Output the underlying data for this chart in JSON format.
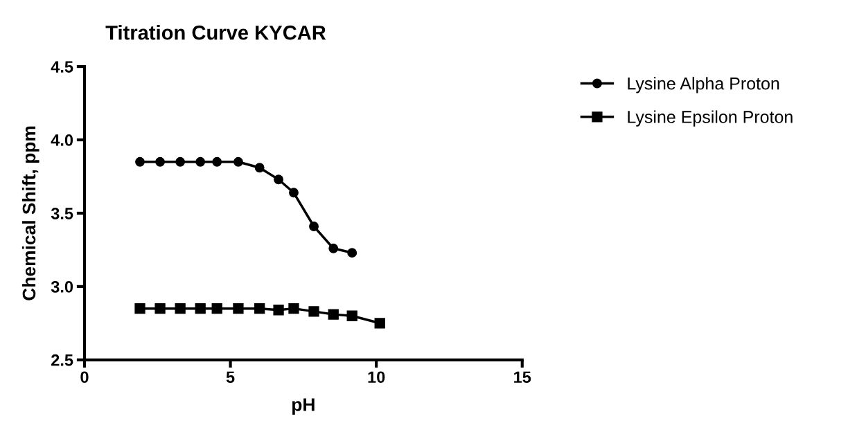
{
  "chart_data": {
    "type": "line",
    "title": "Titration Curve KYCAR",
    "xlabel": "pH",
    "ylabel": "Chemical Shift, ppm",
    "x": [
      1.9,
      2.59,
      3.28,
      3.97,
      4.54,
      5.27,
      6.0,
      6.65,
      7.17,
      7.86,
      8.53,
      9.17,
      10.12
    ],
    "series": [
      {
        "name": "Lysine Alpha Proton",
        "color": "#000000",
        "marker": "circle",
        "values": [
          3.85,
          3.85,
          3.85,
          3.85,
          3.85,
          3.85,
          3.81,
          3.73,
          3.64,
          3.41,
          3.26,
          3.23,
          null
        ]
      },
      {
        "name": "Lysine Epsilon Proton",
        "color": "#000000",
        "marker": "square",
        "values": [
          2.85,
          2.85,
          2.85,
          2.85,
          2.85,
          2.85,
          2.85,
          2.84,
          2.85,
          2.83,
          2.81,
          2.8,
          2.75
        ]
      }
    ],
    "xlim": [
      0,
      15
    ],
    "xticks": [
      0,
      5,
      10,
      15
    ],
    "ylim": [
      2.5,
      4.5
    ],
    "yticks": [
      2.5,
      {
        "value": 3,
        "label": "3.0"
      },
      3.5,
      {
        "value": 4,
        "label": "4.0"
      },
      4.5
    ],
    "grid": false,
    "legend": "right",
    "line_style": "solid"
  }
}
